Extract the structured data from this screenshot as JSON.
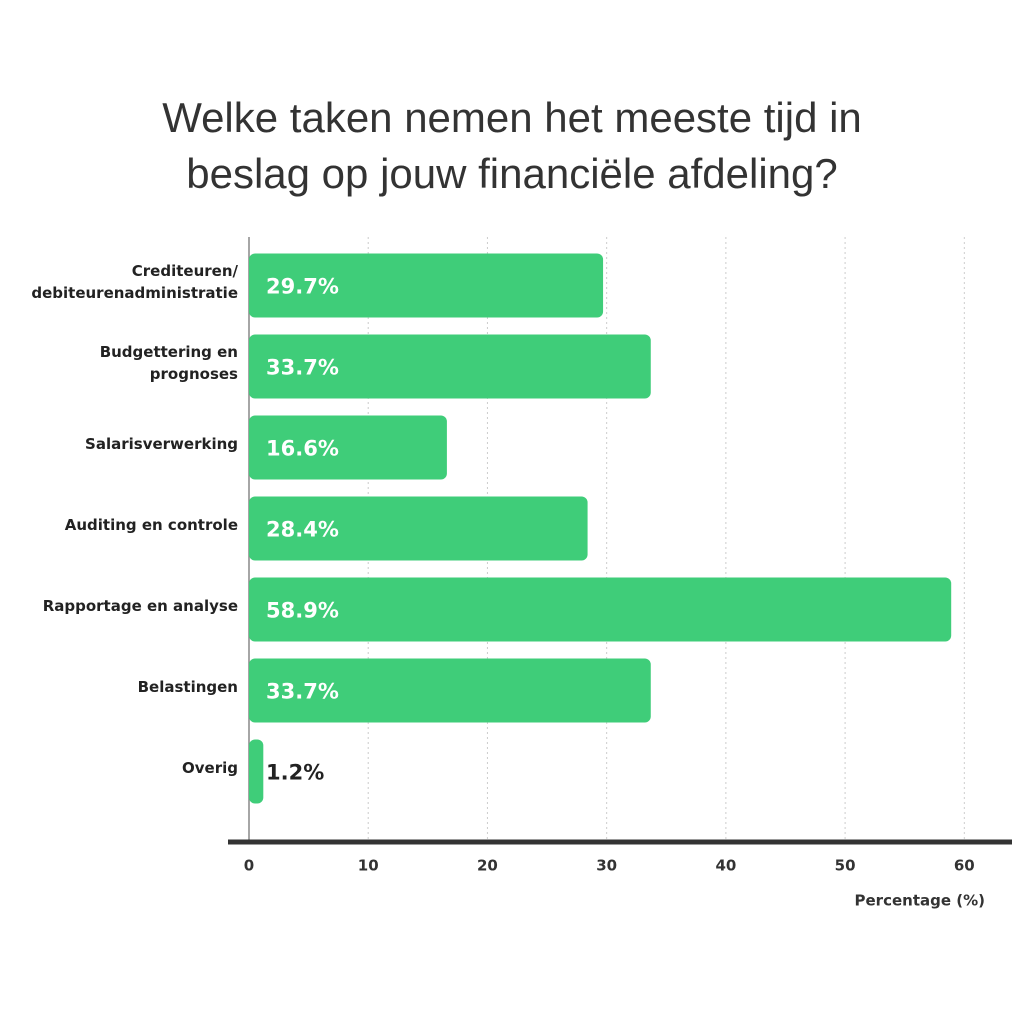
{
  "chart_data": {
    "type": "bar",
    "orientation": "horizontal",
    "title": "Welke taken nemen het meeste tijd in\nbeslag op jouw financiële afdeling?",
    "categories": [
      "Crediteuren/\ndebiteurenadministratie",
      "Budgettering en\nprognoses",
      "Salarisverwerking",
      "Auditing en controle",
      "Rapportage en analyse",
      "Belastingen",
      "Overig"
    ],
    "values": [
      29.7,
      33.7,
      16.6,
      28.4,
      58.9,
      33.7,
      1.2
    ],
    "value_labels": [
      "29.7%",
      "33.7%",
      "16.6%",
      "28.4%",
      "58.9%",
      "33.7%",
      "1.2%"
    ],
    "color": "#3fcd79",
    "xlim": [
      0,
      64
    ],
    "xticks": [
      0,
      10,
      20,
      30,
      40,
      50,
      60
    ],
    "xlabel": "Percentage (%)",
    "grid": true
  }
}
